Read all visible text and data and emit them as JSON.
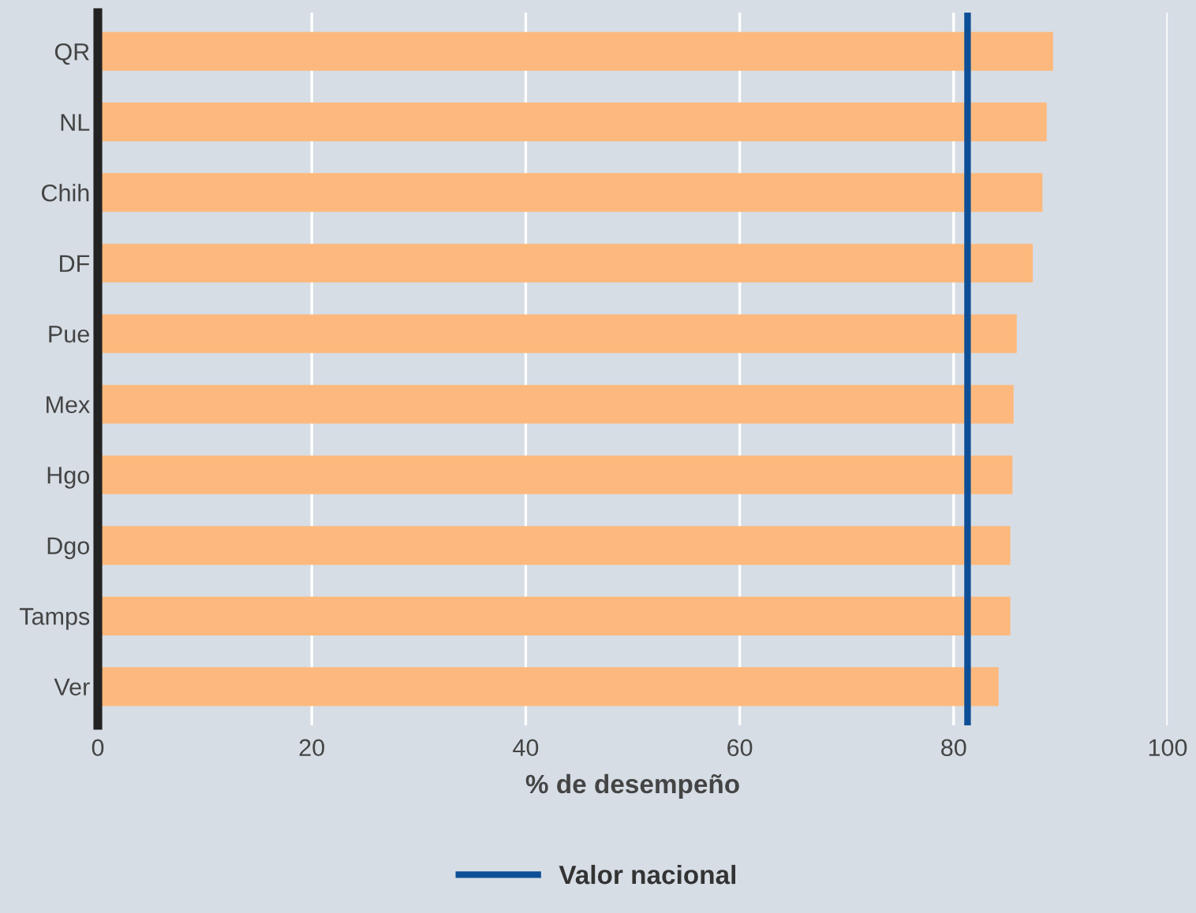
{
  "chart_data": {
    "type": "bar",
    "orientation": "horizontal",
    "xlabel": "% de desempeño",
    "categories": [
      "QR",
      "NL",
      "Chih",
      "DF",
      "Pue",
      "Mex",
      "Hgo",
      "Dgo",
      "Tamps",
      "Ver"
    ],
    "values": [
      89.3,
      88.7,
      88.3,
      87.4,
      85.9,
      85.6,
      85.5,
      85.3,
      85.3,
      84.2
    ],
    "color": "#fdb97d",
    "xlim": [
      0,
      100
    ],
    "xticks": [
      0,
      20,
      40,
      60,
      80,
      100
    ],
    "grid": "x",
    "legend": "bottom",
    "ref_lines": [
      {
        "axis": "x",
        "value": 81.3,
        "label": "Valor nacional",
        "color": "#0d4f96"
      }
    ]
  }
}
